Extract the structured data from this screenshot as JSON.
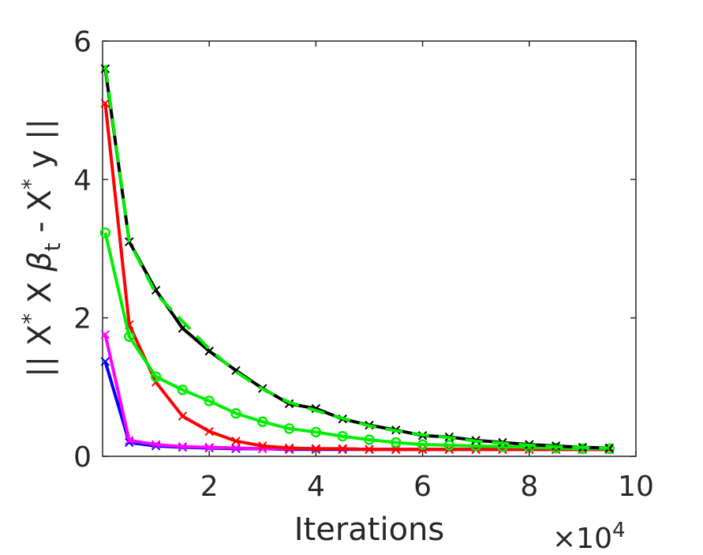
{
  "chart_data": {
    "type": "line",
    "xlabel": "Iterations",
    "ylabel_parts": {
      "a": "|| X",
      "star1": "*",
      "b": " X ",
      "beta": "β",
      "sub": "t",
      "c": " - X",
      "star2": "*",
      "d": " y ||"
    },
    "x_multiplier": {
      "times": "×10",
      "exponent": "4"
    },
    "x_ticks": [
      2,
      4,
      6,
      8,
      10
    ],
    "x_tick_labels": [
      "2",
      "4",
      "6",
      "8",
      "10"
    ],
    "y_ticks": [
      0,
      2,
      4,
      6
    ],
    "y_tick_labels": [
      "0",
      "2",
      "4",
      "6"
    ],
    "xlim": [
      0,
      10
    ],
    "ylim": [
      0,
      6
    ],
    "grid": false,
    "x": [
      0.05,
      0.5,
      1.0,
      1.5,
      2.0,
      2.5,
      3.0,
      3.5,
      4.0,
      4.5,
      5.0,
      5.5,
      6.0,
      6.5,
      7.0,
      7.5,
      8.0,
      8.5,
      9.0,
      9.5
    ],
    "series": [
      {
        "color": "#0000ff",
        "marker": "x",
        "dash": false,
        "values": [
          1.37,
          0.2,
          0.15,
          0.13,
          0.12,
          0.11,
          0.11,
          0.1,
          0.1,
          0.1,
          0.1,
          0.1,
          0.1,
          0.1,
          0.1,
          0.1,
          0.1,
          0.1,
          0.1,
          0.1
        ]
      },
      {
        "color": "#ff00ff",
        "marker": "x",
        "dash": false,
        "values": [
          1.76,
          0.23,
          0.17,
          0.14,
          0.13,
          0.12,
          0.11,
          0.11,
          0.11,
          0.11,
          0.1,
          0.1,
          0.1,
          0.1,
          0.1,
          0.1,
          0.1,
          0.1,
          0.1,
          0.1
        ]
      },
      {
        "color": "#ff0000",
        "marker": "x",
        "dash": false,
        "values": [
          5.1,
          1.9,
          1.07,
          0.58,
          0.36,
          0.22,
          0.15,
          0.12,
          0.11,
          0.11,
          0.1,
          0.1,
          0.1,
          0.1,
          0.1,
          0.1,
          0.1,
          0.1,
          0.1,
          0.1
        ]
      },
      {
        "color": "#00ee00",
        "marker": "o",
        "dash": false,
        "values": [
          3.23,
          1.73,
          1.15,
          0.96,
          0.8,
          0.62,
          0.5,
          0.4,
          0.35,
          0.29,
          0.24,
          0.2,
          0.17,
          0.16,
          0.15,
          0.14,
          0.13,
          0.12,
          0.11,
          0.11
        ]
      },
      {
        "color": "#000000",
        "marker": "x",
        "dash": false,
        "values": [
          5.6,
          3.1,
          2.4,
          1.85,
          1.52,
          1.24,
          0.98,
          0.76,
          0.69,
          0.54,
          0.45,
          0.38,
          0.3,
          0.28,
          0.23,
          0.2,
          0.17,
          0.15,
          0.13,
          0.12
        ]
      },
      {
        "color": "#00ee00",
        "marker": "none",
        "dash": true,
        "values": [
          5.65,
          3.1,
          2.35,
          1.95,
          1.55,
          1.22,
          0.97,
          0.78,
          0.66,
          0.55,
          0.44,
          0.37,
          0.31,
          0.27,
          0.22,
          0.19,
          0.16,
          0.14,
          0.13,
          0.12
        ]
      }
    ]
  }
}
